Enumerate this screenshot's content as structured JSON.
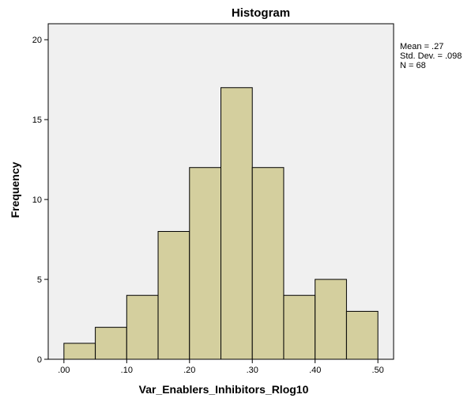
{
  "chart_data": {
    "type": "bar",
    "title": "Histogram",
    "xlabel": "Var_Enablers_Inhibitors_Rlog10",
    "ylabel": "Frequency",
    "bin_edges": [
      0.0,
      0.05,
      0.1,
      0.15,
      0.2,
      0.25,
      0.3,
      0.35,
      0.4,
      0.45,
      0.5
    ],
    "values": [
      1,
      2,
      4,
      8,
      12,
      17,
      12,
      4,
      5,
      3
    ],
    "xlim": [
      -0.025,
      0.525
    ],
    "ylim": [
      0,
      21
    ],
    "x_ticks": [
      {
        "value": 0.0,
        "label": ".00"
      },
      {
        "value": 0.1,
        "label": ".10"
      },
      {
        "value": 0.2,
        "label": ".20"
      },
      {
        "value": 0.3,
        "label": ".30"
      },
      {
        "value": 0.4,
        "label": ".40"
      },
      {
        "value": 0.5,
        "label": ".50"
      }
    ],
    "y_ticks": [
      {
        "value": 0,
        "label": "0"
      },
      {
        "value": 5,
        "label": "5"
      },
      {
        "value": 10,
        "label": "10"
      },
      {
        "value": 15,
        "label": "15"
      },
      {
        "value": 20,
        "label": "20"
      }
    ],
    "stats": [
      "Mean = .27",
      "Std. Dev. = .098",
      "N = 68"
    ],
    "colors": {
      "bar_fill": "#d4cf9e",
      "bar_stroke": "#000000",
      "plot_background": "#f0f0f0"
    },
    "grid": false,
    "legend": "none"
  }
}
